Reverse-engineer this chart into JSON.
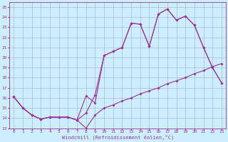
{
  "xlabel": "Windchill (Refroidissement éolien,°C)",
  "xlim": [
    -0.5,
    23.5
  ],
  "ylim": [
    13,
    25.5
  ],
  "yticks": [
    13,
    14,
    15,
    16,
    17,
    18,
    19,
    20,
    21,
    22,
    23,
    24,
    25
  ],
  "xticks": [
    0,
    1,
    2,
    3,
    4,
    5,
    6,
    7,
    8,
    9,
    10,
    11,
    12,
    13,
    14,
    15,
    16,
    17,
    18,
    19,
    20,
    21,
    22,
    23
  ],
  "line_color": "#993399",
  "bg_color": "#cceeff",
  "grid_color": "#aaaacc",
  "line1_y": [
    16.1,
    15.0,
    14.3,
    13.9,
    14.1,
    14.1,
    14.1,
    13.8,
    13.0,
    14.3,
    15.0,
    15.3,
    15.7,
    16.0,
    16.4,
    16.7,
    17.0,
    17.4,
    17.7,
    18.0,
    18.4,
    18.7,
    19.1,
    19.4
  ],
  "line2_y": [
    16.1,
    15.0,
    14.3,
    13.9,
    14.1,
    14.1,
    14.1,
    13.8,
    14.5,
    16.3,
    20.2,
    20.6,
    21.0,
    23.4,
    23.3,
    21.1,
    24.3,
    24.8,
    23.7,
    24.1,
    23.2,
    21.0,
    19.0,
    17.5
  ],
  "line3_y": [
    16.1,
    15.0,
    14.3,
    13.9,
    14.1,
    14.1,
    14.1,
    13.8,
    16.2,
    15.5,
    20.2,
    20.6,
    21.0,
    23.4,
    23.3,
    21.1,
    24.3,
    24.8,
    23.7,
    24.1,
    23.2,
    21.0,
    19.0,
    17.5
  ],
  "marker": "D",
  "markersize": 2.0,
  "linewidth": 0.8
}
